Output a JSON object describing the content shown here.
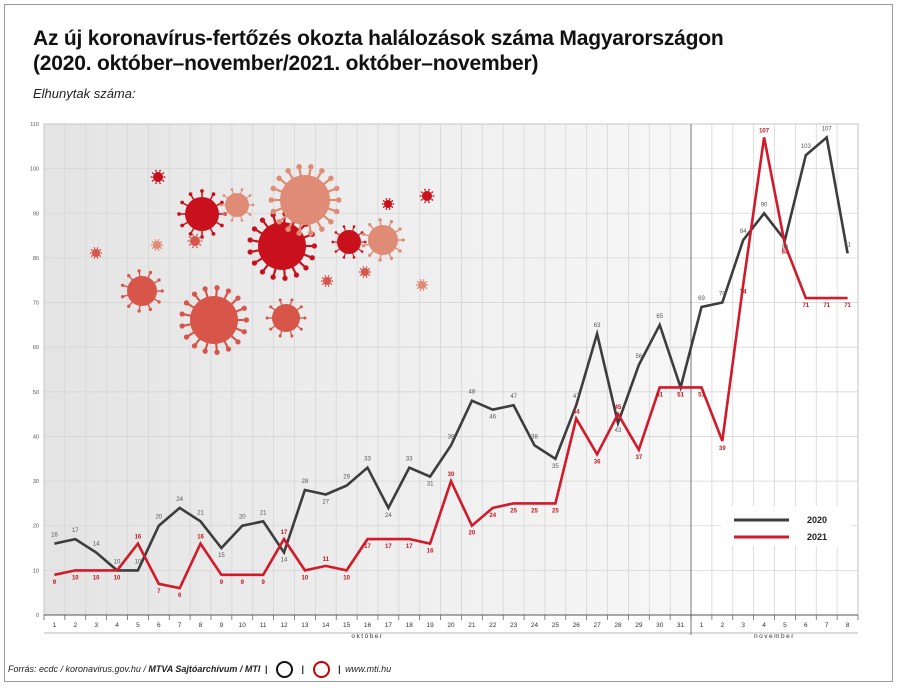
{
  "header": {
    "title": "Az új koronavírus-fertőzés okozta halálozások száma Magyarországon",
    "subtitle": "(2020. október–november/2021. október–november)",
    "ylabel": "Elhunytak száma:"
  },
  "footer": {
    "sources": "Forrás: ecdc / koronavirus.gov.hu / ",
    "agency": "MTVA Sajtóarchívum / MTI",
    "website": "www.mti.hu"
  },
  "colors": {
    "series_2020": "#3d3d3d",
    "series_2021": "#d11a2a",
    "virus_palette": [
      "#c9111e",
      "#d8554a",
      "#e08b75"
    ]
  },
  "chart_data": {
    "type": "line",
    "ylim": [
      0,
      110
    ],
    "yticks": [
      0,
      10,
      20,
      30,
      40,
      50,
      60,
      70,
      80,
      90,
      100,
      110
    ],
    "grid": true,
    "legend_position": "bottom-right",
    "month_labels": [
      "október",
      "november"
    ],
    "x": [
      "1",
      "2",
      "3",
      "4",
      "5",
      "6",
      "7",
      "8",
      "9",
      "10",
      "11",
      "12",
      "13",
      "14",
      "15",
      "16",
      "17",
      "18",
      "19",
      "20",
      "21",
      "22",
      "23",
      "24",
      "25",
      "26",
      "27",
      "28",
      "29",
      "30",
      "31",
      "1",
      "2",
      "3",
      "4",
      "5",
      "6",
      "7",
      "8"
    ],
    "series": [
      {
        "name": "2020",
        "values": [
          16,
          17,
          14,
          10,
          10,
          20,
          24,
          21,
          15,
          20,
          21,
          14,
          28,
          27,
          29,
          33,
          24,
          33,
          31,
          38,
          48,
          46,
          47,
          38,
          35,
          47,
          63,
          43,
          56,
          65,
          51,
          69,
          70,
          84,
          90,
          84,
          103,
          107,
          81
        ]
      },
      {
        "name": "2021",
        "values": [
          9,
          10,
          10,
          10,
          16,
          7,
          6,
          16,
          9,
          9,
          9,
          17,
          10,
          11,
          10,
          17,
          17,
          17,
          16,
          30,
          20,
          24,
          25,
          25,
          25,
          44,
          36,
          45,
          37,
          51,
          51,
          51,
          39,
          74,
          107,
          83,
          71,
          71,
          71
        ]
      }
    ]
  }
}
